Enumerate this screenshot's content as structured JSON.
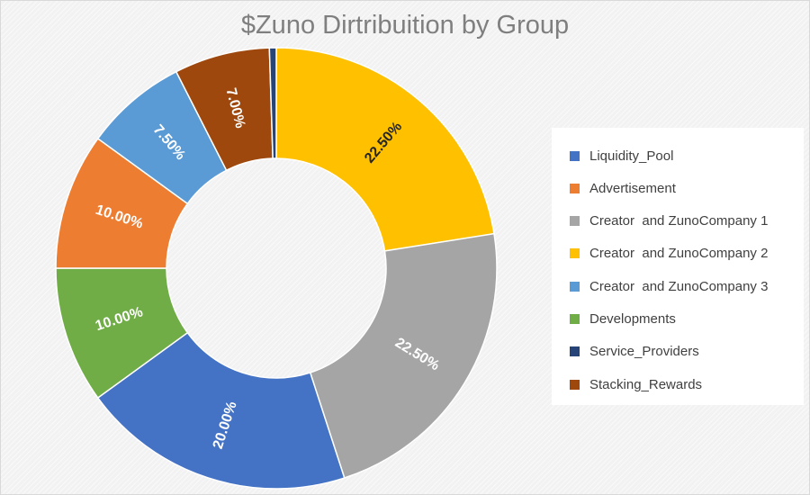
{
  "chart_data": {
    "type": "pie",
    "variant": "donut",
    "title": "$Zuno Dirtribuition by Group",
    "legend_position": "right",
    "start_category": "Creator  and ZunoCompany 2",
    "direction": "clockwise",
    "slices": [
      {
        "name": "Creator  and ZunoCompany 2",
        "value": 22.5,
        "label": "22.50%",
        "color": "#ffc000",
        "label_color": "#262626"
      },
      {
        "name": "Creator  and ZunoCompany 1",
        "value": 22.5,
        "label": "22.50%",
        "color": "#a5a5a5",
        "label_color": "#ffffff"
      },
      {
        "name": "Liquidity_Pool",
        "value": 20.0,
        "label": "20.00%",
        "color": "#4472c4",
        "label_color": "#ffffff"
      },
      {
        "name": "Developments",
        "value": 10.0,
        "label": "10.00%",
        "color": "#70ad47",
        "label_color": "#ffffff"
      },
      {
        "name": "Advertisement",
        "value": 10.0,
        "label": "10.00%",
        "color": "#ed7d31",
        "label_color": "#ffffff"
      },
      {
        "name": "Creator  and ZunoCompany 3",
        "value": 7.5,
        "label": "7.50%",
        "color": "#5b9bd5",
        "label_color": "#ffffff"
      },
      {
        "name": "Stacking_Rewards",
        "value": 7.0,
        "label": "7.00%",
        "color": "#9e480e",
        "label_color": "#ffffff"
      },
      {
        "name": "Service_Providers",
        "value": 0.5,
        "label": "",
        "color": "#264478",
        "label_color": "#ffffff"
      }
    ]
  },
  "legend": {
    "items": [
      {
        "label": "Liquidity_Pool",
        "color": "#4472c4"
      },
      {
        "label": "Advertisement",
        "color": "#ed7d31"
      },
      {
        "label": "Creator  and ZunoCompany 1",
        "color": "#a5a5a5"
      },
      {
        "label": "Creator  and ZunoCompany 2",
        "color": "#ffc000"
      },
      {
        "label": "Creator  and ZunoCompany 3",
        "color": "#5b9bd5"
      },
      {
        "label": "Developments",
        "color": "#70ad47"
      },
      {
        "label": "Service_Providers",
        "color": "#264478"
      },
      {
        "label": "Stacking_Rewards",
        "color": "#9e480e"
      }
    ]
  }
}
